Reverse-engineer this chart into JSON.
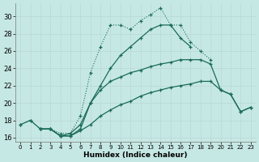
{
  "xlabel": "Humidex (Indice chaleur)",
  "xlim": [
    -0.5,
    23.5
  ],
  "ylim": [
    15.5,
    31.5
  ],
  "yticks": [
    16,
    18,
    20,
    22,
    24,
    26,
    28,
    30
  ],
  "xticks": [
    0,
    1,
    2,
    3,
    4,
    5,
    6,
    7,
    8,
    9,
    10,
    11,
    12,
    13,
    14,
    15,
    16,
    17,
    18,
    19,
    20,
    21,
    22,
    23
  ],
  "background_color": "#c6e8e4",
  "grid_color": "#b8d8d4",
  "line_color": "#1a6b5a",
  "line1_x": [
    0,
    1,
    2,
    3,
    4,
    5,
    6,
    7,
    8,
    9,
    10,
    11,
    12,
    13,
    14,
    15,
    16,
    17,
    18,
    19
  ],
  "line1_y": [
    17.5,
    18.0,
    17.0,
    17.0,
    16.5,
    16.5,
    18.5,
    23.5,
    26.5,
    29.0,
    29.0,
    28.5,
    29.5,
    30.2,
    31.0,
    29.0,
    29.0,
    27.0,
    26.0,
    25.0
  ],
  "line2_x": [
    2,
    3,
    4,
    5,
    6,
    7,
    8,
    9,
    10,
    11,
    12,
    13,
    14,
    15,
    16,
    17,
    18,
    19,
    20,
    21,
    22,
    23
  ],
  "line2_y": [
    17.0,
    17.0,
    16.2,
    16.5,
    17.5,
    20.0,
    21.5,
    22.5,
    23.0,
    23.5,
    23.8,
    24.2,
    24.5,
    24.7,
    25.0,
    25.0,
    25.0,
    24.5,
    21.5,
    21.0,
    19.0,
    19.5
  ],
  "line3_x": [
    2,
    3,
    4,
    5,
    6,
    7,
    8,
    9,
    10,
    11,
    12,
    13,
    14,
    15,
    16,
    17,
    18,
    19,
    20,
    21,
    22,
    23
  ],
  "line3_y": [
    17.0,
    17.0,
    16.2,
    16.2,
    16.8,
    17.5,
    18.5,
    19.2,
    19.8,
    20.2,
    20.8,
    21.2,
    21.5,
    21.8,
    22.0,
    22.2,
    22.5,
    22.5,
    21.5,
    21.0,
    19.0,
    19.5
  ],
  "line4_x": [
    0,
    1,
    2,
    3,
    4,
    5,
    6,
    7,
    8,
    9,
    10,
    11,
    12,
    13,
    14,
    15,
    16,
    17
  ],
  "line4_y": [
    17.5,
    18.0,
    17.0,
    17.0,
    16.2,
    16.2,
    17.0,
    20.0,
    22.0,
    24.0,
    25.5,
    26.5,
    27.5,
    28.5,
    29.0,
    29.0,
    27.5,
    26.5
  ]
}
